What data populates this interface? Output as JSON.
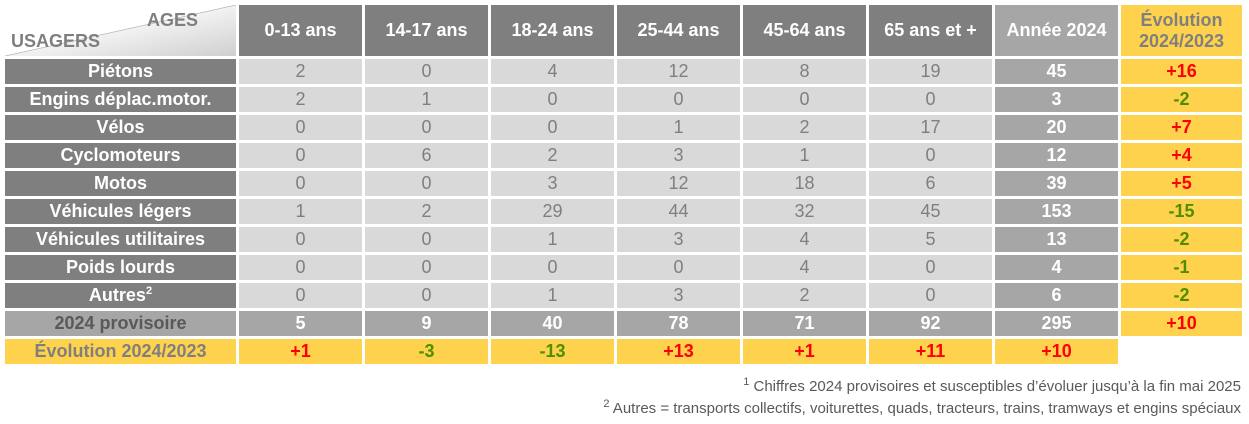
{
  "header": {
    "ages_label": "AGES",
    "usagers_label": "USAGERS",
    "age_columns": [
      "0-13 ans",
      "14-17 ans",
      "18-24 ans",
      "25-44 ans",
      "45-64 ans",
      "65 ans et +"
    ],
    "year_column": "Année 2024",
    "evolution_column": "Évolution 2024/2023"
  },
  "rows": [
    {
      "label": "Piétons",
      "values": [
        "2",
        "0",
        "4",
        "12",
        "8",
        "19"
      ],
      "total": "45",
      "evolution": "+16"
    },
    {
      "label": "Engins déplac.motor.",
      "values": [
        "2",
        "1",
        "0",
        "0",
        "0",
        "0"
      ],
      "total": "3",
      "evolution": "-2"
    },
    {
      "label": "Vélos",
      "values": [
        "0",
        "0",
        "0",
        "1",
        "2",
        "17"
      ],
      "total": "20",
      "evolution": "+7"
    },
    {
      "label": "Cyclomoteurs",
      "values": [
        "0",
        "6",
        "2",
        "3",
        "1",
        "0"
      ],
      "total": "12",
      "evolution": "+4"
    },
    {
      "label": "Motos",
      "values": [
        "0",
        "0",
        "3",
        "12",
        "18",
        "6"
      ],
      "total": "39",
      "evolution": "+5"
    },
    {
      "label": "Véhicules légers",
      "values": [
        "1",
        "2",
        "29",
        "44",
        "32",
        "45"
      ],
      "total": "153",
      "evolution": "-15"
    },
    {
      "label": "Véhicules utilitaires",
      "values": [
        "0",
        "0",
        "1",
        "3",
        "4",
        "5"
      ],
      "total": "13",
      "evolution": "-2"
    },
    {
      "label": "Poids lourds",
      "values": [
        "0",
        "0",
        "0",
        "0",
        "4",
        "0"
      ],
      "total": "4",
      "evolution": "-1"
    },
    {
      "label": "Autres",
      "label_note": "2",
      "values": [
        "0",
        "0",
        "1",
        "3",
        "2",
        "0"
      ],
      "total": "6",
      "evolution": "-2"
    }
  ],
  "total_row": {
    "label": "2024 provisoire",
    "values": [
      "5",
      "9",
      "40",
      "78",
      "71",
      "92"
    ],
    "total": "295",
    "evolution": "+10"
  },
  "evolution_row": {
    "label": "Évolution 2024/2023",
    "values": [
      "+1",
      "-3",
      "-13",
      "+13",
      "+1",
      "+11"
    ],
    "total": "+10"
  },
  "footnotes": [
    {
      "mark": "1",
      "text": " Chiffres 2024 provisoires et susceptibles d’évoluer jusqu’à la fin mai 2025"
    },
    {
      "mark": "2",
      "text": " Autres = transports collectifs, voiturettes, quads, tracteurs, trains, tramways et engins spéciaux"
    }
  ],
  "colors": {
    "header_gray": "#7f7f7f",
    "cell_gray": "#d9d9d9",
    "total_gray": "#a6a6a6",
    "evolution_yellow": "#ffd24d",
    "increase_red": "#ff0000",
    "decrease_green": "#4e8f00"
  }
}
